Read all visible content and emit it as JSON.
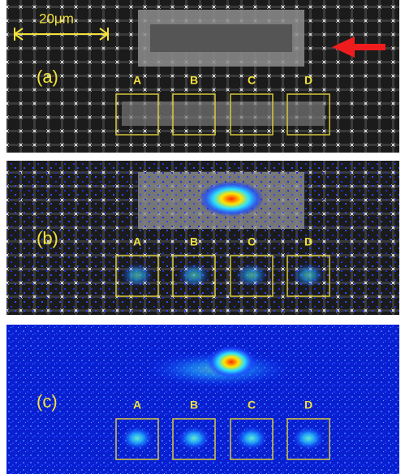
{
  "scale_bar": "20μm",
  "panels": [
    {
      "label": "(a)",
      "regions": [
        "A",
        "B",
        "C",
        "D"
      ]
    },
    {
      "label": "(b)",
      "regions": [
        "A",
        "B",
        "C",
        "D"
      ]
    },
    {
      "label": "(c)",
      "regions": [
        "A",
        "B",
        "C",
        "D"
      ]
    }
  ]
}
